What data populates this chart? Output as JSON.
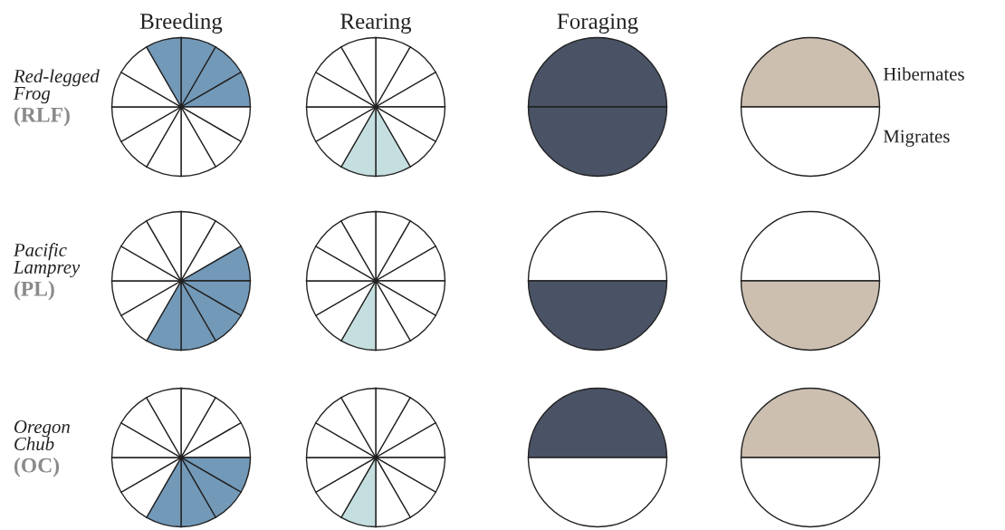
{
  "chart_data": [
    {
      "type": "pie",
      "title": "Breeding",
      "ylabel": "Red-legged\nFrog",
      "annotations": [
        "(RLF)"
      ],
      "categories": [
        null,
        null,
        null,
        null,
        null,
        null,
        null,
        null,
        null,
        null,
        null,
        null
      ],
      "values": [
        8.33,
        8.33,
        8.33,
        8.33,
        8.33,
        8.33,
        8.33,
        8.33,
        8.33,
        8.33,
        8.33,
        8.33
      ],
      "colors": [
        "#7399b8",
        "#7399b8",
        "#7399b8",
        "#ffffff",
        "#ffffff",
        "#ffffff",
        "#ffffff",
        "#ffffff",
        "#ffffff",
        "#ffffff",
        "#ffffff",
        "#7399b8"
      ]
    },
    {
      "type": "pie",
      "title": "Rearing",
      "categories": [
        null,
        null,
        null,
        null,
        null,
        null,
        null,
        null,
        null,
        null,
        null,
        null
      ],
      "values": [
        8.33,
        8.33,
        8.33,
        8.33,
        8.33,
        8.33,
        8.33,
        8.33,
        8.33,
        8.33,
        8.33,
        8.33
      ],
      "colors": [
        "#ffffff",
        "#ffffff",
        "#ffffff",
        "#ffffff",
        "#ffffff",
        "#c5dfe0",
        "#c5dfe0",
        "#ffffff",
        "#ffffff",
        "#ffffff",
        "#ffffff",
        "#ffffff"
      ]
    },
    {
      "type": "pie",
      "title": "Foraging",
      "categories": [
        null,
        null
      ],
      "values": [
        50,
        50
      ],
      "colors": [
        "#4a5366",
        "#4a5366"
      ]
    },
    {
      "type": "pie",
      "categories": [
        "Hibernates",
        "Migrates"
      ],
      "values": [
        50,
        50
      ],
      "colors": [
        "#cdbfb0",
        "#ffffff"
      ]
    },
    {
      "type": "pie",
      "ylabel": "Pacific\nLamprey",
      "annotations": [
        "(PL)"
      ],
      "categories": [
        null,
        null,
        null,
        null,
        null,
        null,
        null,
        null,
        null,
        null,
        null,
        null
      ],
      "values": [
        8.33,
        8.33,
        8.33,
        8.33,
        8.33,
        8.33,
        8.33,
        8.33,
        8.33,
        8.33,
        8.33,
        8.33
      ],
      "colors": [
        "#ffffff",
        "#ffffff",
        "#7399b8",
        "#7399b8",
        "#7399b8",
        "#7399b8",
        "#7399b8",
        "#ffffff",
        "#ffffff",
        "#ffffff",
        "#ffffff",
        "#ffffff"
      ]
    },
    {
      "type": "pie",
      "categories": [
        null,
        null,
        null,
        null,
        null,
        null,
        null,
        null,
        null,
        null,
        null,
        null
      ],
      "values": [
        8.33,
        8.33,
        8.33,
        8.33,
        8.33,
        8.33,
        8.33,
        8.33,
        8.33,
        8.33,
        8.33,
        8.33
      ],
      "colors": [
        "#ffffff",
        "#ffffff",
        "#ffffff",
        "#ffffff",
        "#ffffff",
        "#ffffff",
        "#c5dfe0",
        "#ffffff",
        "#ffffff",
        "#ffffff",
        "#ffffff",
        "#ffffff"
      ]
    },
    {
      "type": "pie",
      "categories": [
        null,
        null
      ],
      "values": [
        50,
        50
      ],
      "colors": [
        "#ffffff",
        "#4a5366"
      ]
    },
    {
      "type": "pie",
      "categories": [
        null,
        null
      ],
      "values": [
        50,
        50
      ],
      "colors": [
        "#ffffff",
        "#cdbfb0"
      ]
    },
    {
      "type": "pie",
      "ylabel": "Oregon\nChub",
      "annotations": [
        "(OC)"
      ],
      "categories": [
        null,
        null,
        null,
        null,
        null,
        null,
        null,
        null,
        null,
        null,
        null,
        null
      ],
      "values": [
        8.33,
        8.33,
        8.33,
        8.33,
        8.33,
        8.33,
        8.33,
        8.33,
        8.33,
        8.33,
        8.33,
        8.33
      ],
      "colors": [
        "#ffffff",
        "#ffffff",
        "#ffffff",
        "#7399b8",
        "#7399b8",
        "#7399b8",
        "#7399b8",
        "#ffffff",
        "#ffffff",
        "#ffffff",
        "#ffffff",
        "#ffffff"
      ]
    },
    {
      "type": "pie",
      "categories": [
        null,
        null,
        null,
        null,
        null,
        null,
        null,
        null,
        null,
        null,
        null,
        null
      ],
      "values": [
        8.33,
        8.33,
        8.33,
        8.33,
        8.33,
        8.33,
        8.33,
        8.33,
        8.33,
        8.33,
        8.33,
        8.33
      ],
      "colors": [
        "#ffffff",
        "#ffffff",
        "#ffffff",
        "#ffffff",
        "#ffffff",
        "#ffffff",
        "#c5dfe0",
        "#ffffff",
        "#ffffff",
        "#ffffff",
        "#ffffff",
        "#ffffff"
      ]
    },
    {
      "type": "pie",
      "categories": [
        null,
        null
      ],
      "values": [
        50,
        50
      ],
      "colors": [
        "#4a5366",
        "#ffffff"
      ]
    },
    {
      "type": "pie",
      "categories": [
        null,
        null
      ],
      "values": [
        50,
        50
      ],
      "colors": [
        "#cdbfb0",
        "#ffffff"
      ]
    }
  ]
}
